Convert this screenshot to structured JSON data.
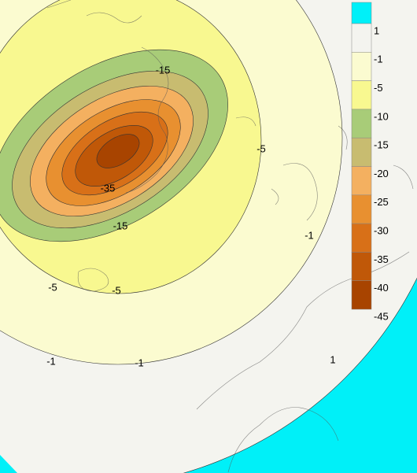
{
  "colorbar": {
    "ticks": [
      1,
      -1,
      -5,
      -10,
      -15,
      -20,
      -25,
      -30,
      -35,
      -40,
      -45
    ],
    "colors": [
      "#00f0f8",
      "#f4f4ef",
      "#fbfbd0",
      "#f8f890",
      "#a8cc78",
      "#c8bc70",
      "#f4b060",
      "#e89030",
      "#d87018",
      "#c05808",
      "#a84400"
    ]
  },
  "contour_labels": [
    -15,
    -5,
    -35,
    -15,
    -1,
    -5,
    -5,
    -1,
    -1,
    1
  ]
}
